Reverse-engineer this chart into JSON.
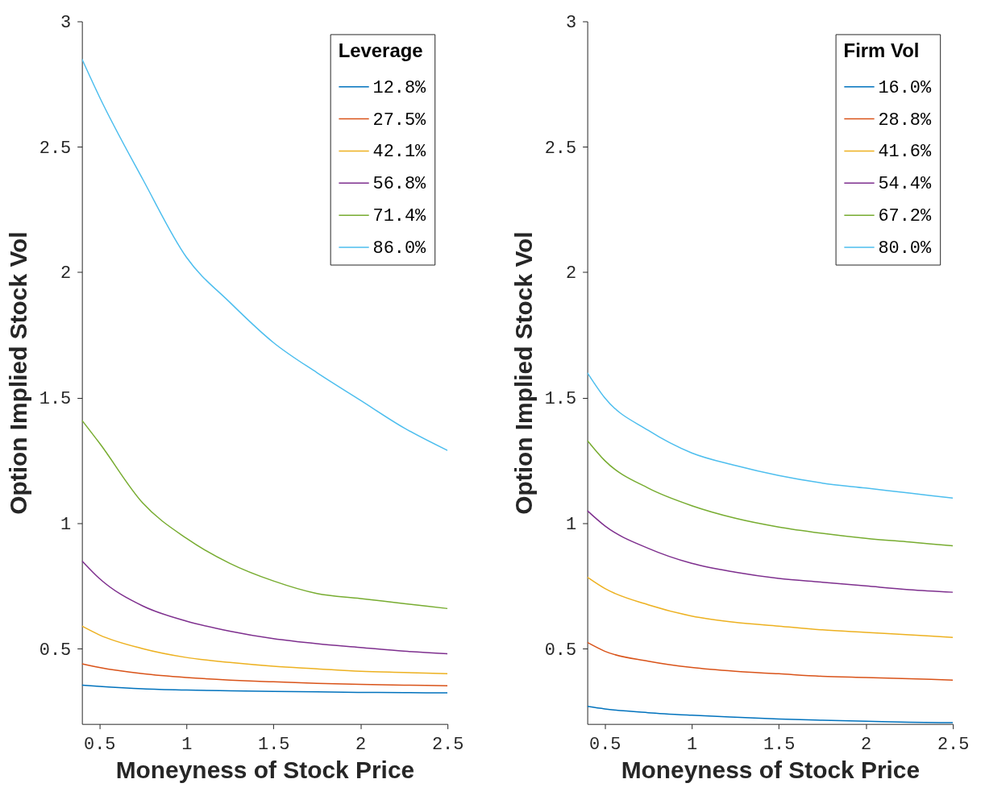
{
  "chart_data": [
    {
      "type": "line",
      "xlabel": "Moneyness of Stock Price",
      "ylabel": "Option Implied Stock Vol",
      "legend_title": "Leverage",
      "legend": "top right",
      "grid": false,
      "marker": "none",
      "line_style": "solid",
      "xlim": [
        0.4,
        2.5
      ],
      "ylim": [
        0.2,
        3
      ],
      "xticks": [
        0.5,
        1,
        1.5,
        2,
        2.5
      ],
      "yticks": [
        0.5,
        1,
        1.5,
        2,
        2.5,
        3
      ],
      "x": [
        0.4,
        0.5,
        0.75,
        1,
        1.25,
        1.5,
        1.75,
        2,
        2.25,
        2.5
      ],
      "series": [
        {
          "name": "12.8%",
          "color": "#0072bd",
          "values": [
            0.355,
            0.35,
            0.34,
            0.335,
            0.332,
            0.33,
            0.328,
            0.326,
            0.325,
            0.324
          ]
        },
        {
          "name": "27.5%",
          "color": "#d95319",
          "values": [
            0.44,
            0.425,
            0.4,
            0.385,
            0.375,
            0.368,
            0.362,
            0.358,
            0.355,
            0.352
          ]
        },
        {
          "name": "42.1%",
          "color": "#edb120",
          "values": [
            0.59,
            0.555,
            0.5,
            0.465,
            0.445,
            0.43,
            0.42,
            0.41,
            0.405,
            0.4
          ]
        },
        {
          "name": "56.8%",
          "color": "#7e2f8e",
          "values": [
            0.85,
            0.78,
            0.67,
            0.61,
            0.57,
            0.54,
            0.52,
            0.505,
            0.49,
            0.48
          ]
        },
        {
          "name": "71.4%",
          "color": "#77ac30",
          "values": [
            1.41,
            1.32,
            1.08,
            0.94,
            0.84,
            0.77,
            0.72,
            0.7,
            0.68,
            0.66
          ]
        },
        {
          "name": "86.0%",
          "color": "#4dbeee",
          "values": [
            2.85,
            2.7,
            2.37,
            2.06,
            1.88,
            1.72,
            1.6,
            1.49,
            1.38,
            1.29
          ]
        }
      ]
    },
    {
      "type": "line",
      "xlabel": "Moneyness of Stock Price",
      "ylabel": "Option Implied Stock Vol",
      "legend_title": "Firm Vol",
      "legend": "top right",
      "grid": false,
      "marker": "none",
      "line_style": "solid",
      "xlim": [
        0.4,
        2.5
      ],
      "ylim": [
        0.2,
        3
      ],
      "xticks": [
        0.5,
        1,
        1.5,
        2,
        2.5
      ],
      "yticks": [
        0.5,
        1,
        1.5,
        2,
        2.5,
        3
      ],
      "x": [
        0.4,
        0.5,
        0.75,
        1,
        1.25,
        1.5,
        1.75,
        2,
        2.25,
        2.5
      ],
      "series": [
        {
          "name": "16.0%",
          "color": "#0072bd",
          "values": [
            0.27,
            0.26,
            0.245,
            0.235,
            0.227,
            0.22,
            0.215,
            0.211,
            0.207,
            0.205
          ]
        },
        {
          "name": "28.8%",
          "color": "#d95319",
          "values": [
            0.525,
            0.49,
            0.45,
            0.425,
            0.41,
            0.4,
            0.39,
            0.385,
            0.38,
            0.375
          ]
        },
        {
          "name": "41.6%",
          "color": "#edb120",
          "values": [
            0.785,
            0.74,
            0.675,
            0.63,
            0.605,
            0.59,
            0.575,
            0.565,
            0.555,
            0.545
          ]
        },
        {
          "name": "54.4%",
          "color": "#7e2f8e",
          "values": [
            1.05,
            0.99,
            0.9,
            0.84,
            0.805,
            0.78,
            0.765,
            0.75,
            0.735,
            0.725
          ]
        },
        {
          "name": "67.2%",
          "color": "#77ac30",
          "values": [
            1.33,
            1.25,
            1.14,
            1.07,
            1.02,
            0.985,
            0.96,
            0.94,
            0.925,
            0.91
          ]
        },
        {
          "name": "80.0%",
          "color": "#4dbeee",
          "values": [
            1.6,
            1.5,
            1.37,
            1.28,
            1.23,
            1.19,
            1.16,
            1.14,
            1.12,
            1.1
          ]
        }
      ]
    }
  ]
}
